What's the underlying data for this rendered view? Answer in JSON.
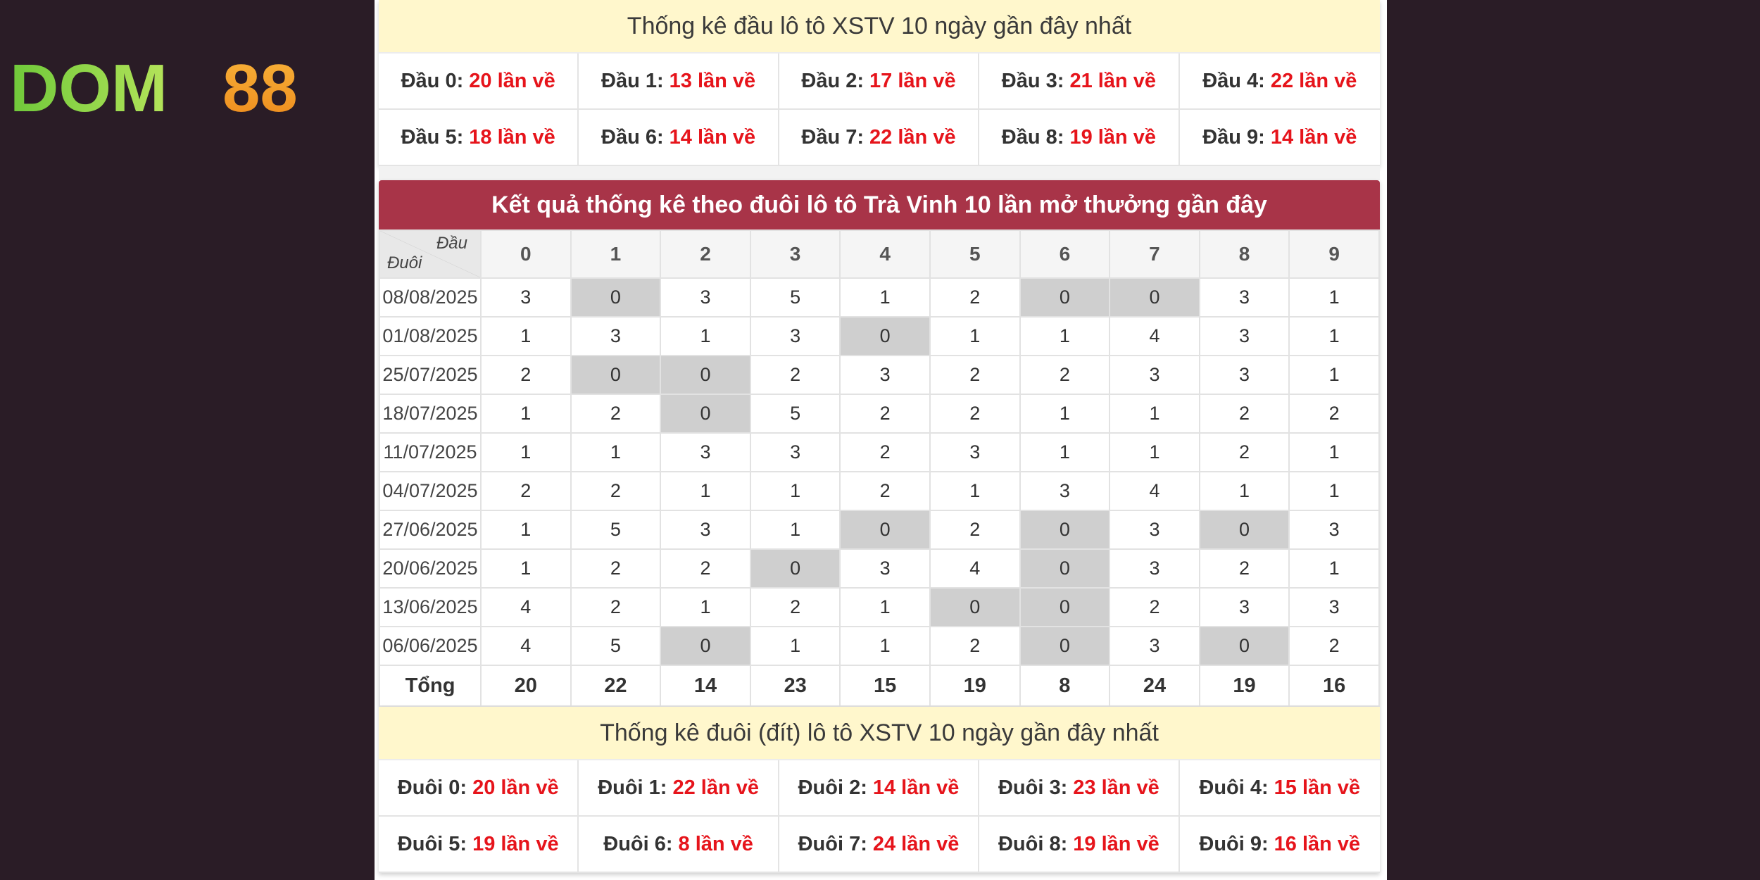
{
  "logo": {
    "text_left": "DOM",
    "text_right": "88"
  },
  "head_stats": {
    "title": "Thống kê đầu lô tô XSTV 10 ngày gần đây nhất",
    "items": [
      {
        "label": "Đầu 0:",
        "value": "20 lần về"
      },
      {
        "label": "Đầu 1:",
        "value": "13 lần về"
      },
      {
        "label": "Đầu 2:",
        "value": "17 lần về"
      },
      {
        "label": "Đầu 3:",
        "value": "21 lần về"
      },
      {
        "label": "Đầu 4:",
        "value": "22 lần về"
      },
      {
        "label": "Đầu 5:",
        "value": "18 lần về"
      },
      {
        "label": "Đầu 6:",
        "value": "14 lần về"
      },
      {
        "label": "Đầu 7:",
        "value": "22 lần về"
      },
      {
        "label": "Đầu 8:",
        "value": "19 lần về"
      },
      {
        "label": "Đầu 9:",
        "value": "14 lần về"
      }
    ]
  },
  "tail_table": {
    "title": "Kết quả thống kê theo đuôi lô tô Trà Vinh 10 lần mở thưởng gần đây",
    "corner_top": "Đầu",
    "corner_bottom": "Đuôi",
    "columns": [
      "0",
      "1",
      "2",
      "3",
      "4",
      "5",
      "6",
      "7",
      "8",
      "9"
    ],
    "rows": [
      {
        "date": "08/08/2025",
        "values": [
          "3",
          "0",
          "3",
          "5",
          "1",
          "2",
          "0",
          "0",
          "3",
          "1"
        ]
      },
      {
        "date": "01/08/2025",
        "values": [
          "1",
          "3",
          "1",
          "3",
          "0",
          "1",
          "1",
          "4",
          "3",
          "1"
        ]
      },
      {
        "date": "25/07/2025",
        "values": [
          "2",
          "0",
          "0",
          "2",
          "3",
          "2",
          "2",
          "3",
          "3",
          "1"
        ]
      },
      {
        "date": "18/07/2025",
        "values": [
          "1",
          "2",
          "0",
          "5",
          "2",
          "2",
          "1",
          "1",
          "2",
          "2"
        ]
      },
      {
        "date": "11/07/2025",
        "values": [
          "1",
          "1",
          "3",
          "3",
          "2",
          "3",
          "1",
          "1",
          "2",
          "1"
        ]
      },
      {
        "date": "04/07/2025",
        "values": [
          "2",
          "2",
          "1",
          "1",
          "2",
          "1",
          "3",
          "4",
          "1",
          "1"
        ]
      },
      {
        "date": "27/06/2025",
        "values": [
          "1",
          "5",
          "3",
          "1",
          "0",
          "2",
          "0",
          "3",
          "0",
          "3"
        ]
      },
      {
        "date": "20/06/2025",
        "values": [
          "1",
          "2",
          "2",
          "0",
          "3",
          "4",
          "0",
          "3",
          "2",
          "1"
        ]
      },
      {
        "date": "13/06/2025",
        "values": [
          "4",
          "2",
          "1",
          "2",
          "1",
          "0",
          "0",
          "2",
          "3",
          "3"
        ]
      },
      {
        "date": "06/06/2025",
        "values": [
          "4",
          "5",
          "0",
          "1",
          "1",
          "2",
          "0",
          "3",
          "0",
          "2"
        ]
      }
    ],
    "total_label": "Tổng",
    "totals": [
      "20",
      "22",
      "14",
      "23",
      "15",
      "19",
      "8",
      "24",
      "19",
      "16"
    ]
  },
  "tail_stats": {
    "title": "Thống kê đuôi (đít) lô tô XSTV 10 ngày gần đây nhất",
    "items": [
      {
        "label": "Đuôi 0:",
        "value": "20 lần về"
      },
      {
        "label": "Đuôi 1:",
        "value": "22 lần về"
      },
      {
        "label": "Đuôi 2:",
        "value": "14 lần về"
      },
      {
        "label": "Đuôi 3:",
        "value": "23 lần về"
      },
      {
        "label": "Đuôi 4:",
        "value": "15 lần về"
      },
      {
        "label": "Đuôi 5:",
        "value": "19 lần về"
      },
      {
        "label": "Đuôi 6:",
        "value": "8 lần về"
      },
      {
        "label": "Đuôi 7:",
        "value": "24 lần về"
      },
      {
        "label": "Đuôi 8:",
        "value": "19 lần về"
      },
      {
        "label": "Đuôi 9:",
        "value": "16 lần về"
      }
    ]
  },
  "colors": {
    "accent_red": "#e6141b",
    "header_red": "#a83448",
    "banner_yellow": "#fff7cc",
    "zero_cell": "#cfcfcf",
    "logo_green": "#8fd14f",
    "logo_orange": "#f5a623"
  }
}
